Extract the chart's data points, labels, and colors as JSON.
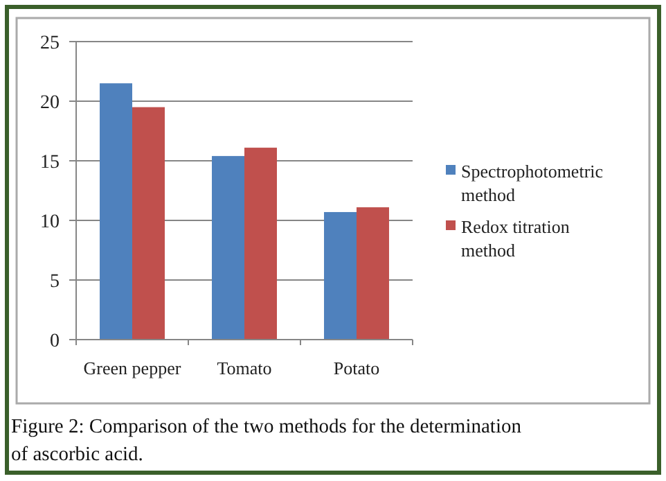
{
  "chart_data": {
    "type": "bar",
    "categories": [
      "Green pepper",
      "Tomato",
      "Potato"
    ],
    "series": [
      {
        "name": "Spectrophotometric method",
        "color": "#4f81bd",
        "values": [
          21.5,
          15.4,
          10.7
        ]
      },
      {
        "name": "Redox titration method",
        "color": "#c0504d",
        "values": [
          19.5,
          16.1,
          11.1
        ]
      }
    ],
    "ylim": [
      0,
      25
    ],
    "yticks": [
      0,
      5,
      10,
      15,
      20,
      25
    ],
    "grid": "y",
    "legend": "right",
    "annotations": [
      "Figure 2: Comparison of the two methods for the determination of ascorbic acid."
    ]
  }
}
